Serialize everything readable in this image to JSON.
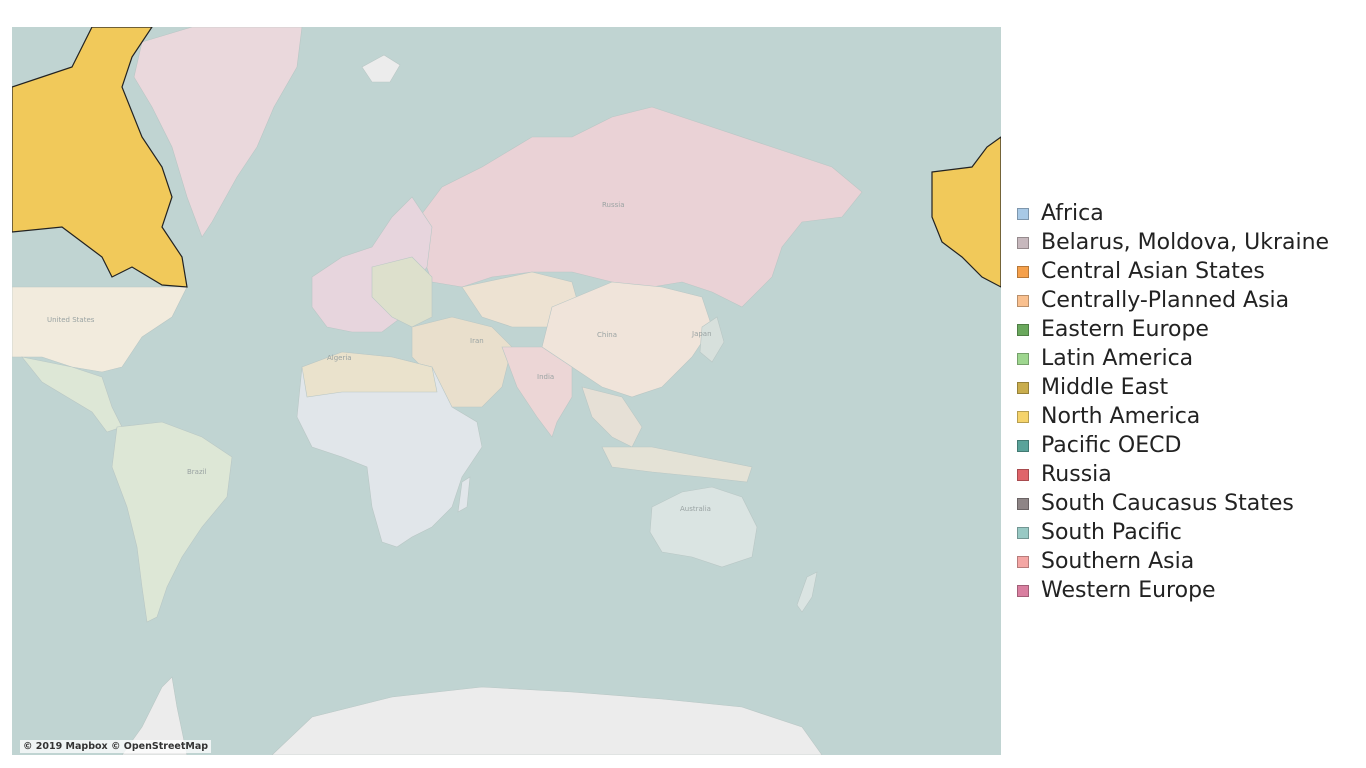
{
  "map": {
    "attribution": "© 2019 Mapbox © OpenStreetMap",
    "highlighted_region": "North America",
    "highlight_color": "#f1c95a",
    "water_color": "#c0d4d2",
    "country_labels": [
      "Russia",
      "China",
      "United States",
      "Brazil",
      "Australia",
      "India",
      "Algeria",
      "Iran",
      "Japan"
    ]
  },
  "legend": {
    "items": [
      {
        "label": "Africa",
        "color": "#a8c9e6"
      },
      {
        "label": "Belarus, Moldova, Ukraine",
        "color": "#c7b8bd"
      },
      {
        "label": "Central Asian States",
        "color": "#f5a04b"
      },
      {
        "label": "Centrally-Planned Asia",
        "color": "#f9c08f"
      },
      {
        "label": "Eastern Europe",
        "color": "#6aa85d"
      },
      {
        "label": "Latin America",
        "color": "#9ed68f"
      },
      {
        "label": "Middle East",
        "color": "#c9ad4d"
      },
      {
        "label": "North America",
        "color": "#f5d36b"
      },
      {
        "label": "Pacific OECD",
        "color": "#5aa39a"
      },
      {
        "label": "Russia",
        "color": "#e0646a"
      },
      {
        "label": "South Caucasus States",
        "color": "#8e8586"
      },
      {
        "label": "South Pacific",
        "color": "#98c9c4"
      },
      {
        "label": "Southern Asia",
        "color": "#f4a6a4"
      },
      {
        "label": "Western Europe",
        "color": "#d97fa0"
      }
    ]
  }
}
